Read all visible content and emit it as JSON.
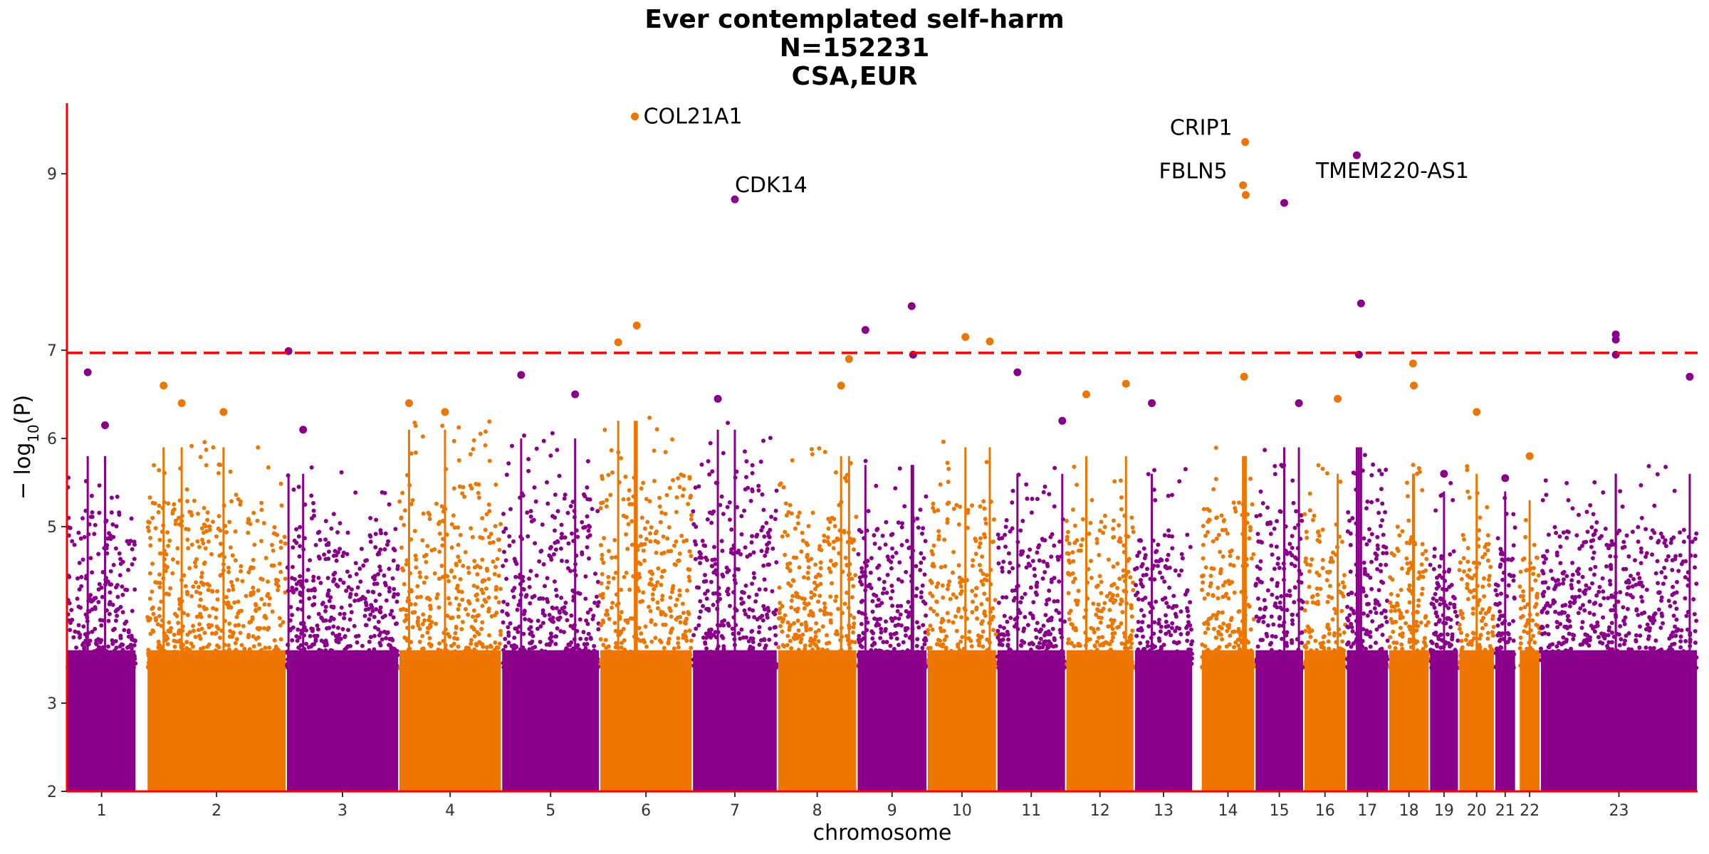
{
  "chart_data": {
    "type": "scatter",
    "subtype": "manhattan",
    "title_lines": [
      "Ever contemplated self-harm",
      "N=152231",
      "CSA,EUR"
    ],
    "xlabel": "chromosome",
    "ylabel_prefix": "− log",
    "ylabel_sub": "10",
    "ylabel_suffix": "(P)",
    "ylim": [
      2,
      9.8
    ],
    "yticks": [
      2,
      3,
      5,
      6,
      7,
      9
    ],
    "threshold": 6.97,
    "colors": {
      "odd": "#8B008B",
      "even": "#EE7600",
      "axis": "#FF0000",
      "threshold": "#FF0000"
    },
    "chromosomes": [
      {
        "label": "1",
        "start": 0.0,
        "end": 0.0425,
        "gap_end": 0.049,
        "base": 5.2,
        "peaks": [
          [
            0.3,
            6.75
          ],
          [
            0.55,
            6.15
          ]
        ]
      },
      {
        "label": "2",
        "start": 0.049,
        "end": 0.1345,
        "base": 5.3,
        "peaks": [
          [
            0.12,
            6.6
          ],
          [
            0.25,
            6.4
          ],
          [
            0.55,
            6.3
          ]
        ]
      },
      {
        "label": "3",
        "start": 0.1345,
        "end": 0.2035,
        "base": 5.0,
        "peaks": [
          [
            0.02,
            6.99
          ],
          [
            0.15,
            6.1
          ]
        ]
      },
      {
        "label": "4",
        "start": 0.2035,
        "end": 0.2665,
        "base": 5.5,
        "peaks": [
          [
            0.1,
            6.4
          ],
          [
            0.45,
            6.3
          ]
        ]
      },
      {
        "label": "5",
        "start": 0.2665,
        "end": 0.3267,
        "base": 5.4,
        "peaks": [
          [
            0.2,
            6.72
          ],
          [
            0.75,
            6.5
          ]
        ]
      },
      {
        "label": "6",
        "start": 0.3267,
        "end": 0.3835,
        "base": 5.6,
        "peaks": [
          [
            0.2,
            7.09
          ],
          [
            0.38,
            9.65
          ],
          [
            0.4,
            7.28
          ]
        ]
      },
      {
        "label": "7",
        "start": 0.3835,
        "end": 0.4357,
        "base": 5.5,
        "peaks": [
          [
            0.5,
            8.71
          ],
          [
            0.3,
            6.45
          ]
        ]
      },
      {
        "label": "8",
        "start": 0.4357,
        "end": 0.4845,
        "base": 5.2,
        "peaks": [
          [
            0.9,
            6.9
          ],
          [
            0.8,
            6.6
          ]
        ]
      },
      {
        "label": "9",
        "start": 0.4845,
        "end": 0.5275,
        "base": 5.1,
        "peaks": [
          [
            0.12,
            7.23
          ],
          [
            0.78,
            7.5
          ],
          [
            0.8,
            6.95
          ]
        ]
      },
      {
        "label": "10",
        "start": 0.5275,
        "end": 0.5702,
        "base": 5.3,
        "peaks": [
          [
            0.55,
            7.15
          ],
          [
            0.9,
            7.1
          ]
        ]
      },
      {
        "label": "11",
        "start": 0.5702,
        "end": 0.6125,
        "base": 5.0,
        "peaks": [
          [
            0.3,
            6.75
          ],
          [
            0.95,
            6.2
          ]
        ]
      },
      {
        "label": "12",
        "start": 0.6125,
        "end": 0.6545,
        "base": 5.2,
        "peaks": [
          [
            0.3,
            6.5
          ],
          [
            0.88,
            6.62
          ]
        ]
      },
      {
        "label": "13",
        "start": 0.6545,
        "end": 0.6905,
        "base": 5.0,
        "peaks": [
          [
            0.3,
            6.4
          ]
        ],
        "gap_after": 0.005
      },
      {
        "label": "14",
        "start": 0.6955,
        "end": 0.7285,
        "base": 5.2,
        "peaks": [
          [
            0.78,
            8.87
          ],
          [
            0.82,
            9.36
          ],
          [
            0.83,
            8.76
          ],
          [
            0.8,
            6.7
          ]
        ]
      },
      {
        "label": "15",
        "start": 0.7285,
        "end": 0.7585,
        "base": 5.3,
        "peaks": [
          [
            0.6,
            8.67
          ],
          [
            0.9,
            6.4
          ]
        ]
      },
      {
        "label": "16",
        "start": 0.7585,
        "end": 0.7845,
        "base": 5.0,
        "peaks": [
          [
            0.8,
            6.45
          ]
        ]
      },
      {
        "label": "17",
        "start": 0.7845,
        "end": 0.8105,
        "base": 5.3,
        "peaks": [
          [
            0.25,
            9.21
          ],
          [
            0.35,
            7.53
          ],
          [
            0.3,
            6.95
          ]
        ]
      },
      {
        "label": "18",
        "start": 0.8105,
        "end": 0.8355,
        "base": 5.0,
        "peaks": [
          [
            0.6,
            6.85
          ],
          [
            0.62,
            6.6
          ]
        ]
      },
      {
        "label": "19",
        "start": 0.8355,
        "end": 0.8535,
        "base": 4.8,
        "peaks": [
          [
            0.5,
            5.6
          ]
        ]
      },
      {
        "label": "20",
        "start": 0.8535,
        "end": 0.8755,
        "base": 5.0,
        "peaks": [
          [
            0.5,
            6.3
          ]
        ]
      },
      {
        "label": "21",
        "start": 0.8755,
        "end": 0.8885,
        "base": 4.8,
        "peaks": [
          [
            0.5,
            5.55
          ]
        ],
        "gap_after": 0.002
      },
      {
        "label": "22",
        "start": 0.8905,
        "end": 0.9035,
        "base": 4.7,
        "peaks": [
          [
            0.5,
            5.8
          ]
        ]
      },
      {
        "label": "23",
        "start": 0.9035,
        "end": 1.0,
        "base": 5.0,
        "peaks": [
          [
            0.48,
            7.18
          ],
          [
            0.48,
            7.12
          ],
          [
            0.48,
            6.95
          ],
          [
            0.95,
            6.7
          ]
        ]
      }
    ],
    "annotations": [
      {
        "label": "COL21A1",
        "chrom": "6",
        "pos": 0.38,
        "y": 9.65,
        "anchor": "start",
        "dx": 12,
        "dy": 0
      },
      {
        "label": "CDK14",
        "chrom": "7",
        "pos": 0.5,
        "y": 8.71,
        "anchor": "start",
        "dx": 0,
        "dy": -20
      },
      {
        "label": "CRIP1",
        "chrom": "14",
        "pos": 0.82,
        "y": 9.36,
        "anchor": "end",
        "dx": -18,
        "dy": -20
      },
      {
        "label": "FBLN5",
        "chrom": "14",
        "pos": 0.78,
        "y": 8.87,
        "anchor": "end",
        "dx": -22,
        "dy": -20
      },
      {
        "label": "TMEM220-AS1",
        "chrom": "17",
        "pos": 0.25,
        "y": 9.21,
        "anchor": "middle",
        "dx": 50,
        "dy": 22
      }
    ]
  }
}
